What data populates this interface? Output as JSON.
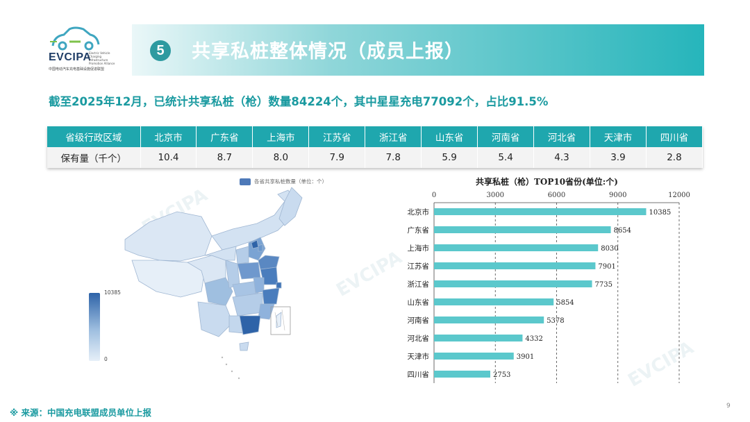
{
  "logo": {
    "word": "EVCIPA",
    "tagline": "Electric Vehicle Charging Infrastructure Promotion Alliance",
    "sub": "中国电动汽车充电基础设施促进联盟"
  },
  "header": {
    "number": "5",
    "title": "共享私桩整体情况（成员上报）"
  },
  "summary": "截至2025年12月，已统计共享私桩（枪）数量84224个，其中星星充电77092个，占比91.5%",
  "table": {
    "header_label": "省级行政区域",
    "row_label": "保有量（千个）",
    "columns": [
      "北京市",
      "广东省",
      "上海市",
      "江苏省",
      "浙江省",
      "山东省",
      "河南省",
      "河北省",
      "天津市",
      "四川省"
    ],
    "values": [
      "10.4",
      "8.7",
      "8.0",
      "7.9",
      "7.8",
      "5.9",
      "5.4",
      "4.3",
      "3.9",
      "2.8"
    ]
  },
  "map": {
    "legend": "各省共享私桩数量（单位：个）",
    "scale_max": "10385",
    "scale_min": "0"
  },
  "chart_data": {
    "type": "bar",
    "orientation": "horizontal",
    "title": "共享私桩（枪）TOP10省份(单位:个)",
    "categories": [
      "北京市",
      "广东省",
      "上海市",
      "江苏省",
      "浙江省",
      "山东省",
      "河南省",
      "河北省",
      "天津市",
      "四川省"
    ],
    "values": [
      10385,
      8654,
      8030,
      7901,
      7735,
      5854,
      5378,
      4332,
      3901,
      2753
    ],
    "xlim": [
      0,
      12000
    ],
    "xticks": [
      0,
      3000,
      6000,
      9000,
      12000
    ],
    "axis_position": "top",
    "grid": true,
    "bar_color": "#5bc8cc"
  },
  "footer": {
    "source": "※  来源：中国充电联盟成员单位上报",
    "page": "9"
  },
  "watermark": "EVCIPA",
  "colors": {
    "accent": "#1fa7ae",
    "accent_text": "#1a9aa0",
    "map_dark": "#2e63a8",
    "map_light": "#e6eff8"
  }
}
